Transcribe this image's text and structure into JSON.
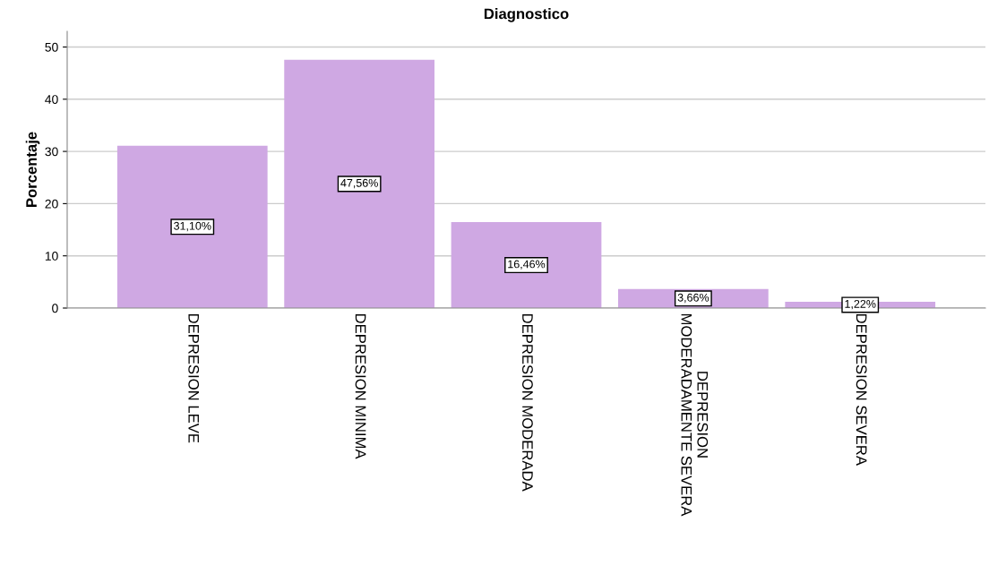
{
  "chart_data": {
    "type": "bar",
    "title": "Diagnostico",
    "ylabel": "Porcentaje",
    "categories": [
      "DEPRESION LEVE",
      "DEPRESION MINIMA",
      "DEPRESION MODERADA",
      "DEPRESION\nMODERADAMENTE SEVERA",
      "DEPRESION SEVERA"
    ],
    "values": [
      31.1,
      47.56,
      16.46,
      3.66,
      1.22
    ],
    "value_labels": [
      "31,10%",
      "47,56%",
      "16,46%",
      "3,66%",
      "1,22%"
    ],
    "color": "#cfa8e3",
    "ylim": [
      0,
      53
    ],
    "yticks": [
      0,
      10,
      20,
      30,
      40,
      50
    ],
    "grid": "y",
    "legend": false
  }
}
